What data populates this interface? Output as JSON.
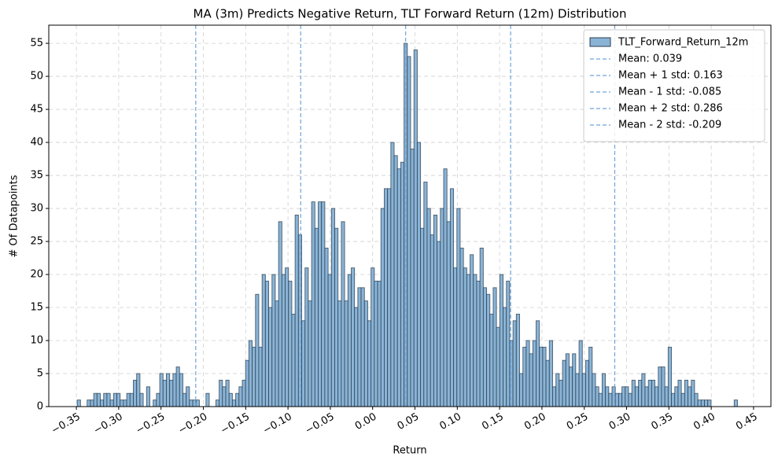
{
  "chart_data": {
    "type": "histogram",
    "title": "MA (3m) Predicts Negative Return, TLT Forward Return (12m) Distribution",
    "xlabel": "Return",
    "ylabel": "# Of Datapoints",
    "name": "TLT_Forward_Return_12m",
    "color": "#8ab4d6",
    "edgecolor": "#2b3d50",
    "bins": [
      -0.349,
      -0.3451,
      -0.3412,
      -0.3373,
      -0.3334,
      -0.3295,
      -0.3256,
      -0.3217,
      -0.3178,
      -0.3139,
      -0.31,
      -0.3061,
      -0.3022,
      -0.2983,
      -0.2944,
      -0.2905,
      -0.2866,
      -0.2827,
      -0.2788,
      -0.2749,
      -0.271,
      -0.2671,
      -0.2632,
      -0.2593,
      -0.2554,
      -0.2515,
      -0.2476,
      -0.2437,
      -0.2398,
      -0.2359,
      -0.232,
      -0.2281,
      -0.2242,
      -0.2203,
      -0.2164,
      -0.2125,
      -0.2086,
      -0.2047,
      -0.2008,
      -0.1969,
      -0.193,
      -0.1891,
      -0.1852,
      -0.1813,
      -0.1774,
      -0.1735,
      -0.1696,
      -0.1657,
      -0.1618,
      -0.1579,
      -0.154,
      -0.1501,
      -0.1462,
      -0.1423,
      -0.1384,
      -0.1345,
      -0.1306,
      -0.1267,
      -0.1228,
      -0.1189,
      -0.115,
      -0.1111,
      -0.1072,
      -0.1033,
      -0.0994,
      -0.0955,
      -0.0916,
      -0.0877,
      -0.0838,
      -0.0799,
      -0.076,
      -0.0721,
      -0.0682,
      -0.0643,
      -0.0604,
      -0.0565,
      -0.0526,
      -0.0487,
      -0.0448,
      -0.0409,
      -0.037,
      -0.0331,
      -0.0292,
      -0.0253,
      -0.0214,
      -0.0175,
      -0.0136,
      -0.0097,
      -0.0058,
      -0.0019,
      0.002,
      0.0059,
      0.0098,
      0.0137,
      0.0176,
      0.0215,
      0.0254,
      0.0293,
      0.0332,
      0.0371,
      0.041,
      0.0449,
      0.0488,
      0.0527,
      0.0566,
      0.0605,
      0.0644,
      0.0683,
      0.0722,
      0.0761,
      0.08,
      0.0839,
      0.0878,
      0.0917,
      0.0956,
      0.0995,
      0.1034,
      0.1073,
      0.1112,
      0.1151,
      0.119,
      0.1229,
      0.1268,
      0.1307,
      0.1346,
      0.1385,
      0.1424,
      0.1463,
      0.1502,
      0.1541,
      0.158,
      0.1619,
      0.1658,
      0.1697,
      0.1736,
      0.1775,
      0.1814,
      0.1853,
      0.1892,
      0.1931,
      0.197,
      0.2009,
      0.2048,
      0.2087,
      0.2126,
      0.2165,
      0.2204,
      0.2243,
      0.2282,
      0.2321,
      0.236,
      0.2399,
      0.2438,
      0.2477,
      0.2516,
      0.2555,
      0.2594,
      0.2633,
      0.2672,
      0.2711,
      0.275,
      0.2789,
      0.2828,
      0.2867,
      0.2906,
      0.2945,
      0.2984,
      0.3023,
      0.3062,
      0.3101,
      0.314,
      0.3179,
      0.3218,
      0.3257,
      0.3296,
      0.3335,
      0.3374,
      0.3413,
      0.3452,
      0.3491,
      0.353,
      0.3569,
      0.3608,
      0.3647,
      0.3686,
      0.3725,
      0.3764,
      0.3803,
      0.3842,
      0.3881,
      0.392,
      0.3959,
      0.3998,
      0.4037,
      0.4076,
      0.4115,
      0.4154,
      0.4193,
      0.4232,
      0.4271,
      0.431
    ],
    "counts": [
      1,
      0,
      0,
      1,
      1,
      2,
      2,
      1,
      2,
      2,
      1,
      2,
      2,
      1,
      1,
      2,
      2,
      4,
      5,
      2,
      0,
      3,
      0,
      1,
      2,
      5,
      4,
      5,
      4,
      5,
      6,
      5,
      2,
      3,
      1,
      1,
      1,
      0,
      0,
      2,
      0,
      0,
      1,
      4,
      3,
      4,
      2,
      1,
      2,
      3,
      4,
      7,
      10,
      9,
      17,
      9,
      20,
      19,
      15,
      20,
      16,
      28,
      20,
      21,
      19,
      14,
      29,
      26,
      13,
      21,
      16,
      31,
      27,
      31,
      31,
      24,
      20,
      30,
      27,
      16,
      28,
      16,
      20,
      21,
      15,
      18,
      18,
      16,
      13,
      21,
      19,
      19,
      30,
      33,
      33,
      40,
      38,
      36,
      37,
      55,
      53,
      39,
      54,
      40,
      27,
      34,
      30,
      26,
      29,
      25,
      30,
      36,
      28,
      33,
      21,
      30,
      24,
      21,
      20,
      23,
      20,
      19,
      24,
      18,
      17,
      14,
      18,
      12,
      20,
      15,
      19,
      10,
      13,
      14,
      5,
      9,
      10,
      8,
      10,
      13,
      9,
      9,
      7,
      10,
      3,
      5,
      4,
      7,
      8,
      6,
      8,
      5,
      10,
      5,
      7,
      9,
      5,
      3,
      2,
      5,
      3,
      2,
      3,
      2,
      2,
      3,
      3,
      2,
      4,
      3,
      4,
      5,
      3,
      4,
      4,
      3,
      6,
      6,
      3,
      9,
      2,
      3,
      4,
      2,
      4,
      3,
      4,
      2,
      1,
      1,
      1,
      1,
      0,
      0,
      0,
      0,
      0,
      0,
      0,
      1
    ],
    "vlines": [
      {
        "label": "Mean: 0.039",
        "value": 0.039
      },
      {
        "label": "Mean + 1 std: 0.163",
        "value": 0.163
      },
      {
        "label": "Mean - 1 std: -0.085",
        "value": -0.085
      },
      {
        "label": "Mean + 2 std: 0.286",
        "value": 0.286
      },
      {
        "label": "Mean - 2 std: -0.209",
        "value": -0.209
      }
    ],
    "vline_color": "#6fa3d8",
    "xlim": [
      -0.3826,
      0.4705
    ],
    "ylim": [
      0,
      57.75
    ],
    "xticks": [
      {
        "value": -0.35,
        "label": "−0.35"
      },
      {
        "value": -0.3,
        "label": "−0.30"
      },
      {
        "value": -0.25,
        "label": "−0.25"
      },
      {
        "value": -0.2,
        "label": "−0.20"
      },
      {
        "value": -0.15,
        "label": "−0.15"
      },
      {
        "value": -0.1,
        "label": "−0.10"
      },
      {
        "value": -0.05,
        "label": "−0.05"
      },
      {
        "value": 0,
        "label": "0.00"
      },
      0.05,
      {
        "value": 0.1,
        "label": "0.10"
      },
      0.15,
      {
        "value": 0.2,
        "label": "0.20"
      },
      0.25,
      {
        "value": 0.3,
        "label": "0.30"
      },
      0.35,
      {
        "value": 0.4,
        "label": "0.40"
      },
      0.45
    ],
    "yticks": [
      0,
      5,
      10,
      15,
      20,
      25,
      30,
      35,
      40,
      45,
      50,
      55
    ],
    "grid": true,
    "legend": "upper right"
  }
}
